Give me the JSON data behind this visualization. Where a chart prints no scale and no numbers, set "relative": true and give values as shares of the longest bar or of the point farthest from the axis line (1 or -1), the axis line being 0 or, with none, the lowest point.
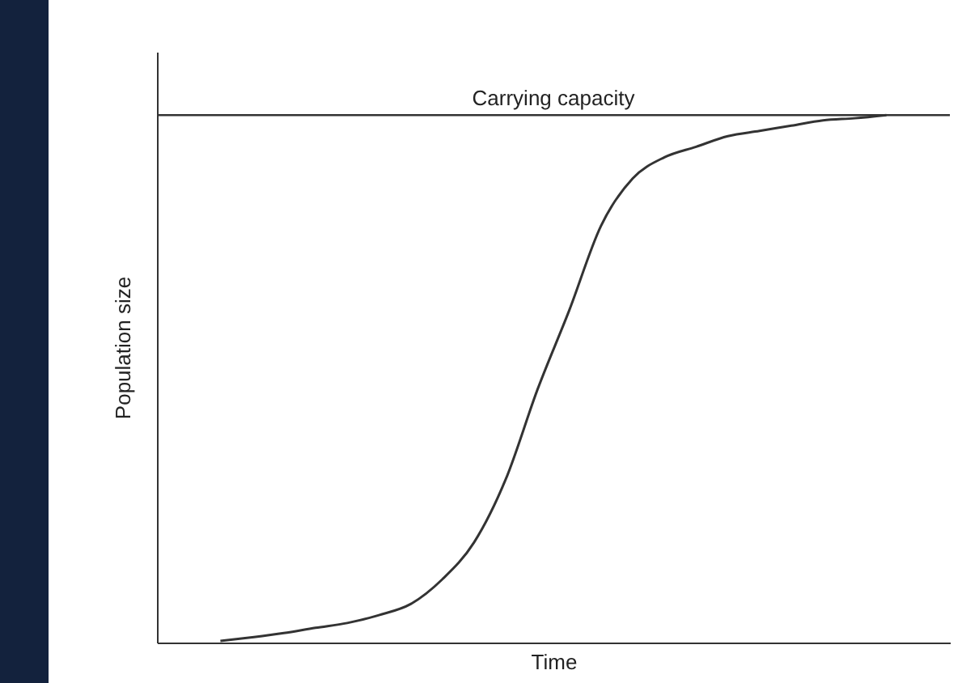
{
  "chart_data": {
    "type": "line",
    "relative": true,
    "xlabel": "Time",
    "ylabel": "Population size",
    "categories": [
      null,
      null,
      null,
      null,
      null,
      null,
      null,
      null,
      null,
      null,
      null,
      null,
      null,
      null,
      null,
      null,
      null,
      null,
      null,
      null,
      null,
      null,
      null,
      null,
      null,
      null
    ],
    "series": [
      {
        "color": "#333333",
        "values": [
          null,
          null,
          0.003,
          0.01,
          0.018,
          0.028,
          0.037,
          0.052,
          0.073,
          0.12,
          0.19,
          0.31,
          0.48,
          0.63,
          0.79,
          0.88,
          0.92,
          0.94,
          0.96,
          0.97,
          0.98,
          0.99,
          0.994,
          1,
          null,
          null
        ]
      }
    ],
    "ref_lines": [
      {
        "axis": "y",
        "value": 1,
        "label": "Carrying capacity",
        "color": "#333333"
      }
    ],
    "grid": false,
    "marker": "none",
    "line_style": "solid"
  }
}
